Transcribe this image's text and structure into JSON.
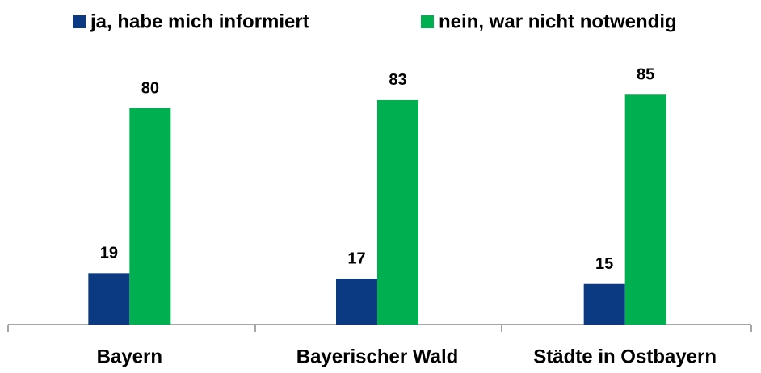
{
  "chart_data": {
    "type": "bar",
    "categories": [
      "Bayern",
      "Bayerischer Wald",
      "Städte in Ostbayern"
    ],
    "series": [
      {
        "name": "ja, habe mich informiert",
        "color": "#0b3a82",
        "values": [
          19,
          17,
          15
        ]
      },
      {
        "name": "nein, war nicht notwendig",
        "color": "#00b050",
        "values": [
          80,
          83,
          85
        ]
      }
    ],
    "legend": "top"
  }
}
